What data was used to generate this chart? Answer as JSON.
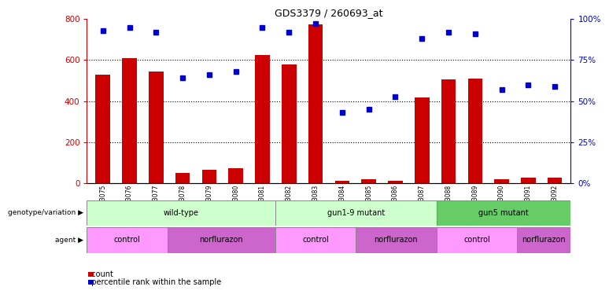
{
  "title": "GDS3379 / 260693_at",
  "samples": [
    "GSM323075",
    "GSM323076",
    "GSM323077",
    "GSM323078",
    "GSM323079",
    "GSM323080",
    "GSM323081",
    "GSM323082",
    "GSM323083",
    "GSM323084",
    "GSM323085",
    "GSM323086",
    "GSM323087",
    "GSM323088",
    "GSM323089",
    "GSM323090",
    "GSM323091",
    "GSM323092"
  ],
  "counts": [
    530,
    610,
    545,
    50,
    65,
    75,
    625,
    580,
    775,
    15,
    20,
    15,
    420,
    505,
    510,
    20,
    30,
    30
  ],
  "percentiles": [
    93,
    95,
    92,
    64,
    66,
    68,
    95,
    92,
    97,
    43,
    45,
    53,
    88,
    92,
    91,
    57,
    60,
    59
  ],
  "ylim_left": [
    0,
    800
  ],
  "ylim_right": [
    0,
    100
  ],
  "yticks_left": [
    0,
    200,
    400,
    600,
    800
  ],
  "yticks_right": [
    0,
    25,
    50,
    75,
    100
  ],
  "bar_color": "#cc0000",
  "dot_color": "#0000cc",
  "groups": [
    {
      "label": "wild-type",
      "start": 0,
      "end": 7,
      "color": "#ccffcc"
    },
    {
      "label": "gun1-9 mutant",
      "start": 7,
      "end": 13,
      "color": "#ccffcc"
    },
    {
      "label": "gun5 mutant",
      "start": 13,
      "end": 18,
      "color": "#66cc66"
    }
  ],
  "agents": [
    {
      "label": "control",
      "start": 0,
      "end": 3,
      "color": "#ff99ff"
    },
    {
      "label": "norflurazon",
      "start": 3,
      "end": 7,
      "color": "#cc66cc"
    },
    {
      "label": "control",
      "start": 7,
      "end": 10,
      "color": "#ff99ff"
    },
    {
      "label": "norflurazon",
      "start": 10,
      "end": 13,
      "color": "#cc66cc"
    },
    {
      "label": "control",
      "start": 13,
      "end": 16,
      "color": "#ff99ff"
    },
    {
      "label": "norflurazon",
      "start": 16,
      "end": 18,
      "color": "#cc66cc"
    }
  ],
  "legend_count_label": "count",
  "legend_pct_label": "percentile rank within the sample",
  "genotype_label": "genotype/variation",
  "agent_label": "agent",
  "grid_yticks": [
    200,
    400,
    600
  ],
  "right_pct_labels": [
    "0%",
    "25%",
    "50%",
    "75%",
    "100%"
  ]
}
